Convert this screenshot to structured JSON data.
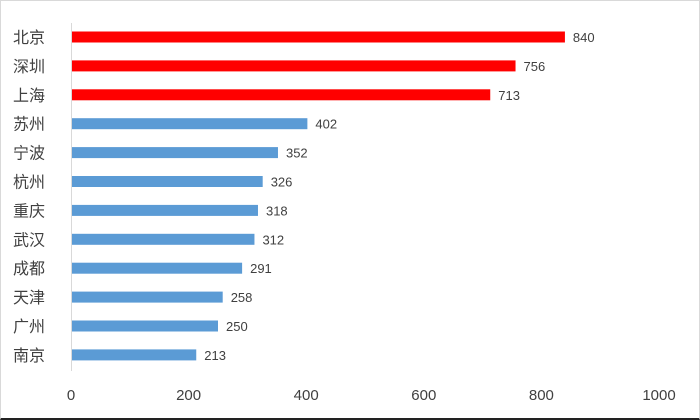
{
  "chart_data": {
    "type": "bar",
    "orientation": "horizontal",
    "categories": [
      "北京",
      "深圳",
      "上海",
      "苏州",
      "宁波",
      "杭州",
      "重庆",
      "武汉",
      "成都",
      "天津",
      "广州",
      "南京"
    ],
    "values": [
      840,
      756,
      713,
      402,
      352,
      326,
      318,
      312,
      291,
      258,
      250,
      213
    ],
    "highlight_colors": [
      "#ff0000",
      "#ff0000",
      "#ff0000",
      "#5b9bd5",
      "#5b9bd5",
      "#5b9bd5",
      "#5b9bd5",
      "#5b9bd5",
      "#5b9bd5",
      "#5b9bd5",
      "#5b9bd5",
      "#5b9bd5"
    ],
    "xlim": [
      0,
      1000
    ],
    "xticks": [
      0,
      200,
      400,
      600,
      800,
      1000
    ],
    "tick_labels": [
      "0",
      "200",
      "400",
      "600",
      "800",
      "1000"
    ],
    "data_labels": [
      "840",
      "756",
      "713",
      "402",
      "352",
      "326",
      "318",
      "312",
      "291",
      "258",
      "250",
      "213"
    ],
    "grid": false,
    "title": "",
    "xlabel": "",
    "ylabel": ""
  }
}
